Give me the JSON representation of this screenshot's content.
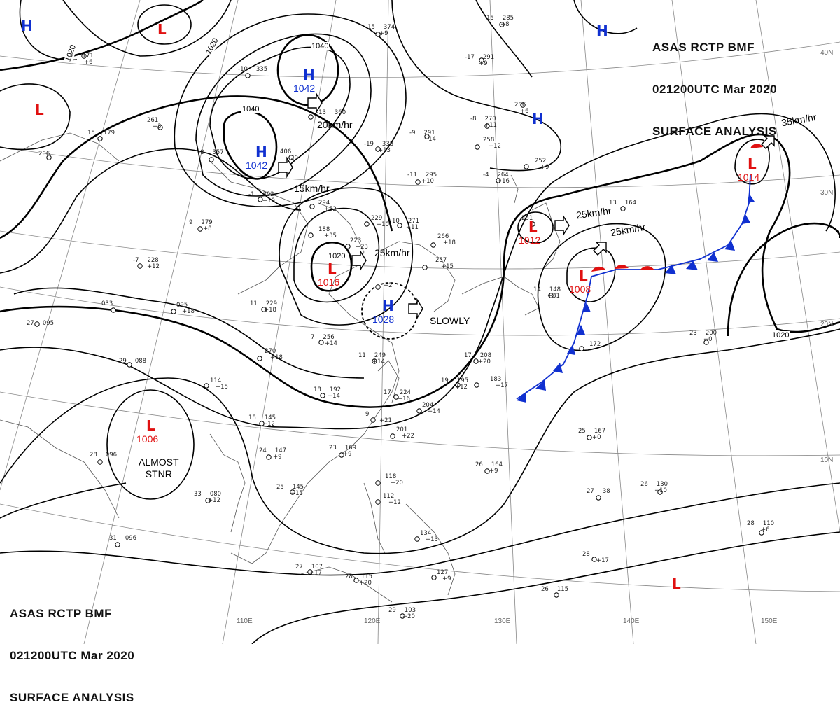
{
  "header": {
    "line1": "ASAS    RCTP    BMF",
    "line2": "021200UTC    Mar    2020",
    "line3": "SURFACE  ANALYSIS"
  },
  "colors": {
    "high": "#1030d0",
    "low": "#e01010",
    "cold_front": "#1030d0",
    "warm_front": "#e01010",
    "isobar": "#000000",
    "graticule": "#888888",
    "coast": "#555555"
  },
  "lat_labels": [
    "40N",
    "30N",
    "20N",
    "10N"
  ],
  "lon_labels": [
    "110E",
    "120E",
    "130E",
    "140E",
    "150E"
  ],
  "pressure_systems": [
    {
      "id": "h-nw-corner",
      "type": "H",
      "value": ""
    },
    {
      "id": "l-north",
      "type": "L",
      "value": ""
    },
    {
      "id": "l-west",
      "type": "L",
      "value": ""
    },
    {
      "id": "h-1042-a",
      "type": "H",
      "value": "1042"
    },
    {
      "id": "h-1042-b",
      "type": "H",
      "value": "1042"
    },
    {
      "id": "h-ne",
      "type": "H",
      "value": ""
    },
    {
      "id": "h-japan",
      "type": "H",
      "value": ""
    },
    {
      "id": "l-1014",
      "type": "L",
      "value": "1014"
    },
    {
      "id": "l-1012",
      "type": "L",
      "value": "1012"
    },
    {
      "id": "l-1008",
      "type": "L",
      "value": "1008"
    },
    {
      "id": "l-1016",
      "type": "L",
      "value": "1016"
    },
    {
      "id": "h-1028",
      "type": "H",
      "value": "1028"
    },
    {
      "id": "l-1006",
      "type": "L",
      "value": "1006"
    },
    {
      "id": "l-se",
      "type": "L",
      "value": ""
    }
  ],
  "isobar_labels": [
    "1020",
    "1020",
    "1040",
    "1040",
    "1020",
    "1020"
  ],
  "motion_labels": [
    "20km/hr",
    "15km/hr",
    "25km/hr",
    "SLOWLY",
    "25km/hr",
    "25km/hr",
    "35km/hr"
  ],
  "notes": [
    "ALMOST",
    "STNR"
  ],
  "stations": [
    {
      "t": "-15",
      "p": "374",
      "c": "+9"
    },
    {
      "t": "15",
      "p": "285",
      "c": "+8"
    },
    {
      "t": "8",
      "p": "171",
      "c": "+6"
    },
    {
      "t": "-13",
      "p": "360",
      "c": ""
    },
    {
      "t": "-17",
      "p": "291",
      "c": "+9"
    },
    {
      "t": "-10",
      "p": "335",
      "c": ""
    },
    {
      "t": "",
      "p": "286",
      "c": "+6"
    },
    {
      "t": "-8",
      "p": "270",
      "c": "+11"
    },
    {
      "t": "-9",
      "p": "291",
      "c": "+14"
    },
    {
      "t": "-19",
      "p": "338",
      "c": "+13"
    },
    {
      "t": "",
      "p": "406",
      "c": "+20"
    },
    {
      "t": "-8",
      "p": "357",
      "c": ""
    },
    {
      "t": "",
      "p": "261",
      "c": "+3"
    },
    {
      "t": "15",
      "p": "179",
      "c": ""
    },
    {
      "t": "",
      "p": "258",
      "c": "+12"
    },
    {
      "t": "",
      "p": "252",
      "c": "+9"
    },
    {
      "t": "-11",
      "p": "295",
      "c": "+10"
    },
    {
      "t": "-4",
      "p": "264",
      "c": "+16"
    },
    {
      "t": "",
      "p": "206",
      "c": ""
    },
    {
      "t": "-1",
      "p": "392",
      "c": "+10"
    },
    {
      "t": "",
      "p": "294",
      "c": "+52"
    },
    {
      "t": "9",
      "p": "279",
      "c": "+8"
    },
    {
      "t": "10",
      "p": "271",
      "c": "+11"
    },
    {
      "t": "",
      "p": "229",
      "c": "+10"
    },
    {
      "t": "",
      "p": "188",
      "c": "+35"
    },
    {
      "t": "",
      "p": "223",
      "c": "+23"
    },
    {
      "t": "",
      "p": "266",
      "c": "+18"
    },
    {
      "t": "",
      "p": "257",
      "c": "+15"
    },
    {
      "t": "",
      "p": "261",
      "c": ""
    },
    {
      "t": "13",
      "p": "164",
      "c": ""
    },
    {
      "t": "-7",
      "p": "228",
      "c": "+12"
    },
    {
      "t": "11",
      "p": "229",
      "c": "+18"
    },
    {
      "t": "",
      "p": "033",
      "c": ""
    },
    {
      "t": "27",
      "p": "095",
      "c": ""
    },
    {
      "t": "",
      "p": "095",
      "c": "+18"
    },
    {
      "t": "",
      "p": "+2",
      "c": ""
    },
    {
      "t": "14",
      "p": "148",
      "c": "+31"
    },
    {
      "t": "23",
      "p": "200",
      "c": "+0"
    },
    {
      "t": "7",
      "p": "256",
      "c": "+14"
    },
    {
      "t": "",
      "p": "270",
      "c": "+18"
    },
    {
      "t": "11",
      "p": "249",
      "c": "+14"
    },
    {
      "t": "17",
      "p": "208",
      "c": "+20"
    },
    {
      "t": "",
      "p": "172",
      "c": ""
    },
    {
      "t": "29",
      "p": "088",
      "c": ""
    },
    {
      "t": "",
      "p": "114",
      "c": "+15"
    },
    {
      "t": "18",
      "p": "192",
      "c": "+14"
    },
    {
      "t": "19",
      "p": "195",
      "c": "+12"
    },
    {
      "t": "",
      "p": "183",
      "c": "+17"
    },
    {
      "t": "17",
      "p": "224",
      "c": "+16"
    },
    {
      "t": "",
      "p": "204",
      "c": "+14"
    },
    {
      "t": "18",
      "p": "145",
      "c": "+12"
    },
    {
      "t": "",
      "p": "201",
      "c": "+22"
    },
    {
      "t": "9",
      "p": "",
      "c": "+21"
    },
    {
      "t": "25",
      "p": "167",
      "c": "+0"
    },
    {
      "t": "24",
      "p": "147",
      "c": "+9"
    },
    {
      "t": "23",
      "p": "169",
      "c": "+9"
    },
    {
      "t": "28",
      "p": "096",
      "c": ""
    },
    {
      "t": "26",
      "p": "164",
      "c": "+9"
    },
    {
      "t": "",
      "p": "118",
      "c": "+20"
    },
    {
      "t": "25",
      "p": "145",
      "c": "+15"
    },
    {
      "t": "33",
      "p": "080",
      "c": "+12"
    },
    {
      "t": "27",
      "p": "38",
      "c": ""
    },
    {
      "t": "26",
      "p": "130",
      "c": "+10"
    },
    {
      "t": "",
      "p": "112",
      "c": "+12"
    },
    {
      "t": "28",
      "p": "110",
      "c": "+6"
    },
    {
      "t": "31",
      "p": "096",
      "c": ""
    },
    {
      "t": "",
      "p": "134",
      "c": "+13"
    },
    {
      "t": "28",
      "p": "",
      "c": "+17"
    },
    {
      "t": "27",
      "p": "107",
      "c": "+17"
    },
    {
      "t": "28",
      "p": "115",
      "c": "+20"
    },
    {
      "t": "",
      "p": "127",
      "c": "+9"
    },
    {
      "t": "26",
      "p": "115",
      "c": ""
    },
    {
      "t": "29",
      "p": "103",
      "c": "+20"
    }
  ]
}
